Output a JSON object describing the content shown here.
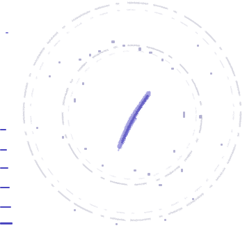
{
  "image": {
    "kind": "faded-circular-stamp",
    "ink_color": "#5c57c8",
    "ring_color": "#c9c9d6",
    "background": "#ffffff"
  },
  "stamp": {
    "icon": "seal-stamp-icon",
    "signature_icon": "handwritten-signature-icon",
    "margin_marks_icon": "ink-dash-marks-icon"
  }
}
